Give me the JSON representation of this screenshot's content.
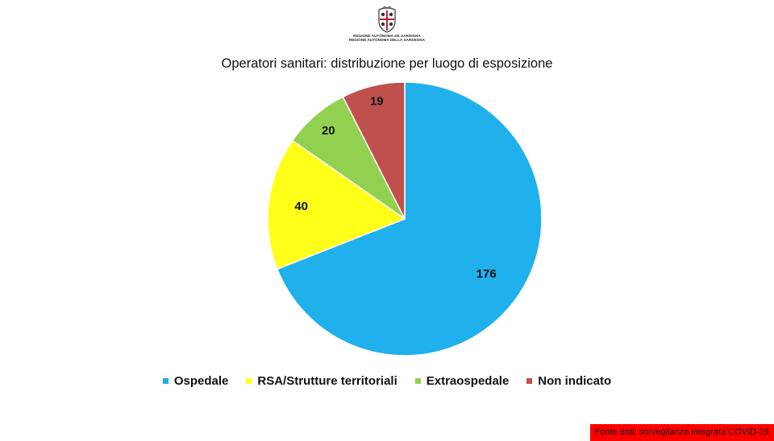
{
  "header": {
    "logo_line1": "REGIONE AUTÒNOMA DE SARDIGNA",
    "logo_line2": "REGIONE AUTONOMA DELLA SARDEGNA"
  },
  "chart_data": {
    "type": "pie",
    "title": "Operatori sanitari: distribuzione per luogo di esposizione",
    "slices": [
      {
        "label": "Ospedale",
        "value": 176,
        "color": "#20b0ec"
      },
      {
        "label": "RSA/Strutture territoriali",
        "value": 40,
        "color": "#ffff1a"
      },
      {
        "label": "Extraospedale",
        "value": 20,
        "color": "#92d050"
      },
      {
        "label": "Non indicato",
        "value": 19,
        "color": "#c0504d"
      }
    ],
    "legend_position": "bottom"
  },
  "footer": {
    "source": "Fonte dati: sorveglianza integrata COVID-19"
  }
}
